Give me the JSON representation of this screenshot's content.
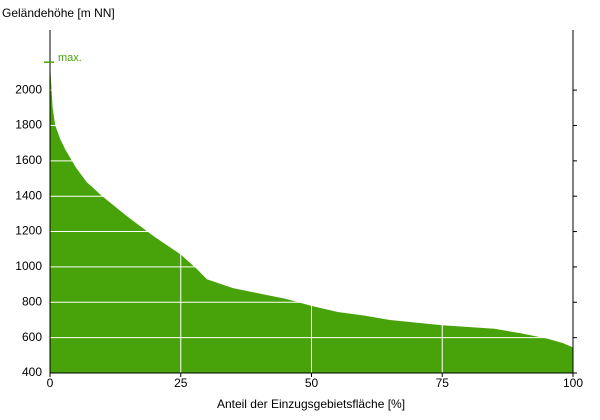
{
  "chart_data": {
    "type": "area",
    "title": "Geländehöhe [m NN]",
    "x_label": "Anteil der Einzugsgebietsfläche [%]",
    "x": [
      0,
      0.2,
      0.5,
      1,
      2,
      3,
      5,
      7,
      10,
      15,
      20,
      25,
      28,
      30,
      33,
      35,
      40,
      45,
      50,
      55,
      60,
      65,
      70,
      75,
      80,
      85,
      90,
      95,
      98,
      100
    ],
    "values": [
      2158,
      2050,
      1900,
      1800,
      1720,
      1660,
      1560,
      1480,
      1400,
      1280,
      1170,
      1070,
      990,
      930,
      900,
      880,
      850,
      820,
      780,
      745,
      725,
      700,
      685,
      670,
      660,
      650,
      625,
      595,
      570,
      545
    ],
    "color": "#48a30a",
    "xlim": [
      0,
      100
    ],
    "xticks": [
      0,
      25,
      50,
      75,
      100
    ],
    "ylim": [
      400,
      2340
    ],
    "yticks": [
      400,
      600,
      800,
      1000,
      1200,
      1400,
      1600,
      1800,
      2000
    ],
    "grid": true,
    "annotation": {
      "text": "max.",
      "value": 2158
    }
  }
}
